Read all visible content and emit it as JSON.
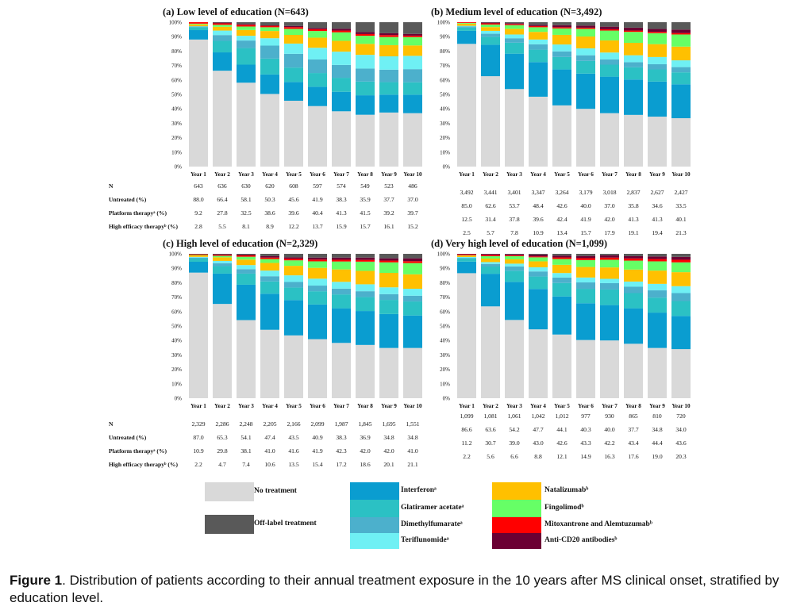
{
  "colors": {
    "no_treatment": "#d9d9d9",
    "interferon": "#0a9dd0",
    "glatiramer": "#2bc1c4",
    "dimethyl": "#4cb0cc",
    "teriflunomide": "#6ff0f4",
    "natalizumab": "#ffc000",
    "fingolimod": "#66ff66",
    "mitox": "#ff0000",
    "antiCD20": "#6b0033",
    "offlabel": "#595959"
  },
  "chart_data": [
    {
      "type": "bar",
      "title": "(a)  Low level of education (N=643)",
      "categories": [
        "Year 1",
        "Year 2",
        "Year 3",
        "Year 4",
        "Year 5",
        "Year 6",
        "Year 7",
        "Year 8",
        "Year 9",
        "Year 10"
      ],
      "yticks": [
        "0%",
        "10%",
        "20%",
        "30%",
        "40%",
        "50%",
        "60%",
        "70%",
        "80%",
        "90%",
        "100%"
      ],
      "ylim": [
        0,
        100
      ],
      "series": [
        {
          "name": "No treatment",
          "values": [
            88.0,
            66.4,
            58.1,
            50.3,
            45.6,
            41.9,
            38.3,
            35.9,
            37.7,
            37.0
          ]
        },
        {
          "name": "Interferon",
          "values": [
            6.5,
            12.7,
            12.5,
            13.5,
            13.0,
            13.4,
            13.5,
            13.5,
            12.5,
            12.8
          ]
        },
        {
          "name": "Glatiramer acetate",
          "values": [
            2.0,
            8.0,
            11.5,
            11.0,
            10.0,
            9.5,
            9.7,
            9.5,
            8.7,
            8.6
          ]
        },
        {
          "name": "Dimethylfumarate",
          "values": [
            0.5,
            4.0,
            5.2,
            9.0,
            9.5,
            9.4,
            8.9,
            9.0,
            8.7,
            9.1
          ]
        },
        {
          "name": "Teriflunomide",
          "values": [
            0.2,
            3.1,
            3.3,
            5.1,
            7.1,
            8.1,
            9.2,
            9.5,
            9.3,
            9.2
          ]
        },
        {
          "name": "Natalizumab",
          "values": [
            1.3,
            2.6,
            4.0,
            5.0,
            6.0,
            7.0,
            7.5,
            7.6,
            7.8,
            7.2
          ]
        },
        {
          "name": "Fingolimod",
          "values": [
            0.5,
            1.4,
            2.4,
            2.6,
            4.2,
            4.6,
            5.9,
            5.6,
            5.7,
            5.8
          ]
        },
        {
          "name": "Mitoxantrone and Alemtuzumab",
          "values": [
            1.0,
            1.0,
            1.2,
            1.0,
            1.2,
            1.2,
            1.2,
            1.2,
            1.3,
            1.0
          ]
        },
        {
          "name": "Anti-CD20 antibodies",
          "values": [
            0.0,
            0.5,
            0.5,
            0.3,
            0.8,
            0.9,
            1.3,
            1.3,
            1.3,
            1.2
          ]
        },
        {
          "name": "Off-label treatment",
          "values": [
            0.0,
            0.3,
            1.3,
            2.2,
            2.6,
            4.0,
            4.5,
            6.9,
            7.7,
            8.1
          ]
        }
      ],
      "table": {
        "labels": [
          "N",
          "Untreated (%)",
          "Platform therapyᵃ (%)",
          "High efficacy therapyᵇ (%)"
        ],
        "rows": [
          [
            "643",
            "636",
            "630",
            "620",
            "608",
            "597",
            "574",
            "549",
            "523",
            "486"
          ],
          [
            "88.0",
            "66.4",
            "58.1",
            "50.3",
            "45.6",
            "41.9",
            "38.3",
            "35.9",
            "37.7",
            "37.0"
          ],
          [
            "9.2",
            "27.8",
            "32.5",
            "38.6",
            "39.6",
            "40.4",
            "41.3",
            "41.5",
            "39.2",
            "39.7"
          ],
          [
            "2.8",
            "5.5",
            "8.1",
            "8.9",
            "12.2",
            "13.7",
            "15.9",
            "15.7",
            "16.1",
            "15.2"
          ]
        ]
      }
    },
    {
      "type": "bar",
      "title": "(b)  Medium level of education (N=3,492)",
      "categories": [
        "Year 1",
        "Year 2",
        "Year 3",
        "Year 4",
        "Year 5",
        "Year 6",
        "Year 7",
        "Year 8",
        "Year 9",
        "Year 10"
      ],
      "yticks": [
        "0%",
        "10%",
        "20%",
        "30%",
        "40%",
        "50%",
        "60%",
        "70%",
        "80%",
        "90%",
        "100%"
      ],
      "ylim": [
        0,
        100
      ],
      "series": [
        {
          "name": "No treatment",
          "values": [
            85.0,
            62.6,
            53.7,
            48.4,
            42.6,
            40.0,
            37.0,
            35.8,
            34.6,
            33.5
          ]
        },
        {
          "name": "Interferon",
          "values": [
            9.0,
            21.8,
            24.5,
            24.0,
            25.0,
            24.4,
            25.3,
            24.5,
            24.3,
            23.5
          ]
        },
        {
          "name": "Glatiramer acetate",
          "values": [
            2.2,
            5.5,
            7.6,
            8.6,
            8.7,
            8.8,
            8.3,
            8.5,
            8.4,
            8.3
          ]
        },
        {
          "name": "Dimethylfumarate",
          "values": [
            0.8,
            2.1,
            3.1,
            3.7,
            3.9,
            3.9,
            3.6,
            3.5,
            3.6,
            3.6
          ]
        },
        {
          "name": "Teriflunomide",
          "values": [
            0.5,
            2.0,
            2.6,
            3.3,
            4.8,
            4.8,
            4.8,
            4.8,
            5.0,
            4.7
          ]
        },
        {
          "name": "Natalizumab",
          "values": [
            1.5,
            2.6,
            3.9,
            5.3,
            6.7,
            8.2,
            8.4,
            8.6,
            8.9,
            9.5
          ]
        },
        {
          "name": "Fingolimod",
          "values": [
            0.5,
            1.8,
            2.6,
            3.2,
            4.5,
            5.3,
            6.8,
            7.6,
            7.6,
            8.4
          ]
        },
        {
          "name": "Mitoxantrone and Alemtuzumab",
          "values": [
            0.5,
            0.8,
            0.7,
            0.8,
            0.8,
            0.8,
            0.9,
            0.9,
            0.9,
            1.0
          ]
        },
        {
          "name": "Anti-CD20 antibodies",
          "values": [
            0.0,
            0.5,
            0.6,
            0.9,
            1.4,
            1.4,
            1.8,
            2.0,
            2.0,
            2.4
          ]
        },
        {
          "name": "Off-label treatment",
          "values": [
            0.0,
            0.3,
            0.7,
            1.8,
            2.1,
            2.4,
            3.1,
            3.8,
            4.7,
            5.1
          ]
        }
      ],
      "table": {
        "labels": [
          "N",
          "Untreated (%)",
          "Platform therapyᵃ (%)",
          "High efficacy therapyᵇ (%)"
        ],
        "rows": [
          [
            "3,492",
            "3,441",
            "3,401",
            "3,347",
            "3,264",
            "3,179",
            "3,018",
            "2,837",
            "2,627",
            "2,427"
          ],
          [
            "85.0",
            "62.6",
            "53.7",
            "48.4",
            "42.6",
            "40.0",
            "37.0",
            "35.8",
            "34.6",
            "33.5"
          ],
          [
            "12.5",
            "31.4",
            "37.8",
            "39.6",
            "42.4",
            "41.9",
            "42.0",
            "41.3",
            "41.3",
            "40.1"
          ],
          [
            "2.5",
            "5.7",
            "7.8",
            "10.9",
            "13.4",
            "15.7",
            "17.9",
            "19.1",
            "19.4",
            "21.3"
          ]
        ]
      }
    },
    {
      "type": "bar",
      "title": "(c)  High level of education (N=2,329)",
      "categories": [
        "Year 1",
        "Year 2",
        "Year 3",
        "Year 4",
        "Year 5",
        "Year 6",
        "Year 7",
        "Year 8",
        "Year 9",
        "Year 10"
      ],
      "yticks": [
        "0%",
        "10%",
        "20%",
        "30%",
        "40%",
        "50%",
        "60%",
        "70%",
        "80%",
        "90%",
        "100%"
      ],
      "ylim": [
        0,
        100
      ],
      "series": [
        {
          "name": "No treatment",
          "values": [
            87.0,
            65.3,
            54.1,
            47.4,
            43.5,
            40.9,
            38.3,
            36.9,
            34.8,
            34.8
          ]
        },
        {
          "name": "Interferon",
          "values": [
            7.5,
            21.0,
            24.5,
            25.0,
            24.5,
            24.0,
            24.0,
            23.5,
            23.5,
            22.5
          ]
        },
        {
          "name": "Glatiramer acetate",
          "values": [
            2.2,
            5.2,
            7.7,
            8.5,
            8.7,
            9.2,
            9.6,
            9.7,
            9.8,
            9.7
          ]
        },
        {
          "name": "Dimethylfumarate",
          "values": [
            0.7,
            2.0,
            3.1,
            3.6,
            3.8,
            3.9,
            4.0,
            4.0,
            4.0,
            4.0
          ]
        },
        {
          "name": "Teriflunomide",
          "values": [
            0.5,
            1.6,
            2.8,
            3.9,
            4.6,
            4.8,
            4.7,
            4.8,
            4.7,
            4.8
          ]
        },
        {
          "name": "Natalizumab",
          "values": [
            1.0,
            2.5,
            3.8,
            5.3,
            6.6,
            7.5,
            8.6,
            9.3,
            10.0,
            10.0
          ]
        },
        {
          "name": "Fingolimod",
          "values": [
            0.3,
            1.0,
            2.0,
            2.7,
            3.8,
            4.5,
            5.5,
            6.4,
            7.3,
            7.8
          ]
        },
        {
          "name": "Mitoxantrone and Alemtuzumab",
          "values": [
            0.5,
            0.7,
            0.9,
            1.0,
            1.1,
            1.2,
            1.2,
            1.2,
            1.2,
            1.3
          ]
        },
        {
          "name": "Anti-CD20 antibodies",
          "values": [
            0.0,
            0.4,
            0.6,
            1.0,
            1.0,
            1.4,
            1.5,
            1.6,
            1.6,
            2.0
          ]
        },
        {
          "name": "Off-label treatment",
          "values": [
            0.3,
            0.3,
            0.5,
            1.6,
            2.4,
            2.6,
            2.6,
            2.6,
            3.1,
            3.1
          ]
        }
      ],
      "table": {
        "labels": [
          "N",
          "Untreated (%)",
          "Platform therapyᵃ (%)",
          "High efficacy therapyᵇ (%)"
        ],
        "rows": [
          [
            "2,329",
            "2,286",
            "2,248",
            "2,205",
            "2,166",
            "2,099",
            "1,987",
            "1,845",
            "1,695",
            "1,551"
          ],
          [
            "87.0",
            "65.3",
            "54.1",
            "47.4",
            "43.5",
            "40.9",
            "38.3",
            "36.9",
            "34.8",
            "34.8"
          ],
          [
            "10.9",
            "29.8",
            "38.1",
            "41.0",
            "41.6",
            "41.9",
            "42.3",
            "42.0",
            "42.0",
            "41.0"
          ],
          [
            "2.2",
            "4.7",
            "7.4",
            "10.6",
            "13.5",
            "15.4",
            "17.2",
            "18.6",
            "20.1",
            "21.1"
          ]
        ]
      }
    },
    {
      "type": "bar",
      "title": "(d)  Very high level of education (N=1,099)",
      "categories": [
        "Year 1",
        "Year 2",
        "Year 3",
        "Year 4",
        "Year 5",
        "Year 6",
        "Year 7",
        "Year 8",
        "Year 9",
        "Year 10"
      ],
      "yticks": [
        "0%",
        "10%",
        "20%",
        "30%",
        "40%",
        "50%",
        "60%",
        "70%",
        "80%",
        "90%",
        "100%"
      ],
      "ylim": [
        0,
        100
      ],
      "series": [
        {
          "name": "No treatment",
          "values": [
            86.6,
            63.6,
            54.2,
            47.7,
            44.1,
            40.3,
            40.0,
            37.7,
            34.8,
            34.0
          ]
        },
        {
          "name": "Interferon",
          "values": [
            8.0,
            22.6,
            26.4,
            28.0,
            26.4,
            25.5,
            24.5,
            24.6,
            24.5,
            23.0
          ]
        },
        {
          "name": "Glatiramer acetate",
          "values": [
            2.1,
            5.0,
            7.7,
            8.6,
            9.3,
            10.0,
            10.8,
            10.5,
            10.4,
            10.3
          ]
        },
        {
          "name": "Dimethylfumarate",
          "values": [
            0.5,
            1.8,
            3.0,
            3.5,
            3.8,
            4.4,
            4.4,
            4.4,
            5.0,
            5.5
          ]
        },
        {
          "name": "Teriflunomide",
          "values": [
            0.6,
            1.3,
            1.9,
            2.9,
            3.1,
            3.4,
            3.0,
            3.6,
            4.5,
            4.8
          ]
        },
        {
          "name": "Natalizumab",
          "values": [
            1.0,
            2.4,
            3.0,
            4.1,
            5.7,
            7.3,
            7.9,
            8.3,
            9.2,
            9.7
          ]
        },
        {
          "name": "Fingolimod",
          "values": [
            0.2,
            1.7,
            2.2,
            2.8,
            4.0,
            4.8,
            5.3,
            6.2,
            6.4,
            6.8
          ]
        },
        {
          "name": "Mitoxantrone and Alemtuzumab",
          "values": [
            0.6,
            0.8,
            0.6,
            0.6,
            1.1,
            1.3,
            1.5,
            1.5,
            1.6,
            1.8
          ]
        },
        {
          "name": "Anti-CD20 antibodies",
          "values": [
            0.4,
            0.7,
            0.8,
            1.3,
            1.3,
            1.5,
            1.6,
            1.6,
            1.8,
            2.0
          ]
        },
        {
          "name": "Off-label treatment",
          "values": [
            0.0,
            0.1,
            0.2,
            0.5,
            1.2,
            1.5,
            1.0,
            1.6,
            1.8,
            2.1
          ]
        }
      ],
      "table": {
        "labels": [
          "N",
          "Untreated (%)",
          "Platform therapyᵃ (%)",
          "High efficacy therapyᵇ (%)"
        ],
        "rows": [
          [
            "1,099",
            "1,081",
            "1,061",
            "1,042",
            "1,012",
            "977",
            "930",
            "865",
            "810",
            "720"
          ],
          [
            "86.6",
            "63.6",
            "54.2",
            "47.7",
            "44.1",
            "40.3",
            "40.0",
            "37.7",
            "34.8",
            "34.0"
          ],
          [
            "11.2",
            "30.7",
            "39.0",
            "43.0",
            "42.6",
            "43.3",
            "42.2",
            "43.4",
            "44.4",
            "43.6"
          ],
          [
            "2.2",
            "5.6",
            "6.6",
            "8.8",
            "12.1",
            "14.9",
            "16.3",
            "17.6",
            "19.0",
            "20.3"
          ]
        ]
      }
    }
  ],
  "legend": [
    {
      "key": "no_treatment",
      "label": "No treatment"
    },
    {
      "key": "offlabel",
      "label": "Off-label treatment"
    },
    {
      "key": "interferon",
      "label": "Interferonᵃ"
    },
    {
      "key": "glatiramer",
      "label": "Glatiramer acetateᵃ"
    },
    {
      "key": "dimethyl",
      "label": "Dimethylfumarateᵃ"
    },
    {
      "key": "teriflunomide",
      "label": "Teriflunomideᵃ"
    },
    {
      "key": "natalizumab",
      "label": "Natalizumabᵇ"
    },
    {
      "key": "fingolimod",
      "label": "Fingolimodᵇ"
    },
    {
      "key": "mitox",
      "label": "Mitoxantrone and Alemtuzumabᵇ"
    },
    {
      "key": "antiCD20",
      "label": "Anti-CD20 antibodiesᵇ"
    }
  ],
  "caption": {
    "label": "Figure 1",
    "text": ". Distribution of patients according to their annual treatment exposure in the 10 years after MS clinical onset, stratified by education level."
  }
}
